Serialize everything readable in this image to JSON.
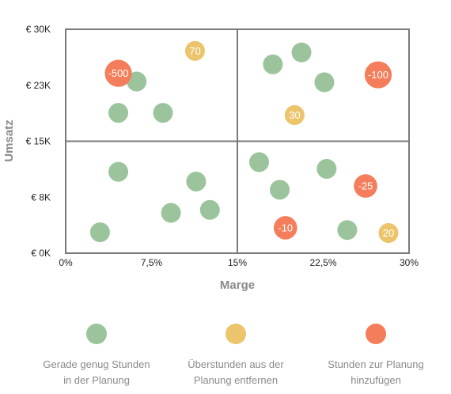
{
  "chart_data": {
    "type": "scatter",
    "xlabel": "Marge",
    "ylabel": "Umsatz",
    "xlim": [
      0,
      30
    ],
    "ylim": [
      0,
      30000
    ],
    "x_ticks": [
      "0%",
      "7,5%",
      "15%",
      "22,5%",
      "30%"
    ],
    "y_ticks": [
      "€ 0K",
      "€ 8K",
      "€ 15K",
      "€ 23K",
      "€ 30K"
    ],
    "quadrant_dividers": {
      "x": 15,
      "y": 15000
    },
    "grid": false,
    "legend_position": "bottom",
    "series": [
      {
        "name": "Gerade genug Stunden in der Planung",
        "color": "#9cc49c",
        "points": [
          {
            "x": 3.0,
            "y": 2800
          },
          {
            "x": 4.6,
            "y": 18800
          },
          {
            "x": 4.6,
            "y": 10900
          },
          {
            "x": 6.2,
            "y": 23000
          },
          {
            "x": 8.5,
            "y": 18800
          },
          {
            "x": 9.2,
            "y": 5400
          },
          {
            "x": 11.4,
            "y": 9600
          },
          {
            "x": 12.6,
            "y": 5800
          },
          {
            "x": 18.1,
            "y": 25300
          },
          {
            "x": 20.6,
            "y": 26900
          },
          {
            "x": 22.6,
            "y": 22900
          },
          {
            "x": 16.9,
            "y": 12200
          },
          {
            "x": 18.7,
            "y": 8500
          },
          {
            "x": 22.8,
            "y": 11300
          },
          {
            "x": 24.6,
            "y": 3100
          }
        ]
      },
      {
        "name": "Überstunden aus der Planung entfernen",
        "color": "#ecc46c",
        "points": [
          {
            "x": 11.3,
            "y": 27100,
            "label": "70"
          },
          {
            "x": 20.0,
            "y": 18500,
            "label": "30"
          },
          {
            "x": 28.2,
            "y": 2700,
            "label": "20"
          }
        ]
      },
      {
        "name": "Stunden zur Planung hinzufügen",
        "color": "#f47e5b",
        "points": [
          {
            "x": 4.6,
            "y": 24100,
            "label": "-500"
          },
          {
            "x": 27.3,
            "y": 23900,
            "label": "-100"
          },
          {
            "x": 26.2,
            "y": 9000,
            "label": "-25"
          },
          {
            "x": 19.2,
            "y": 3400,
            "label": "-10"
          }
        ]
      }
    ]
  },
  "legend": [
    {
      "line1": "Gerade genug Stunden",
      "line2": "in der Planung",
      "color": "#9cc49c"
    },
    {
      "line1": "Überstunden aus der",
      "line2": "Planung entfernen",
      "color": "#ecc46c"
    },
    {
      "line1": "Stunden zur Planung",
      "line2": "hinzufügen",
      "color": "#f47e5b"
    }
  ]
}
